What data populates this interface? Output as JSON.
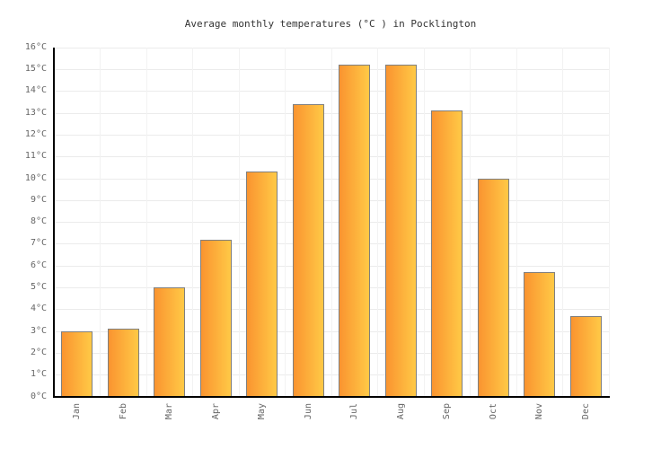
{
  "title": "Average monthly temperatures (°C ) in Pocklington",
  "chart_data": {
    "type": "bar",
    "title": "Average monthly temperatures (°C ) in Pocklington",
    "categories": [
      "Jan",
      "Feb",
      "Mar",
      "Apr",
      "May",
      "Jun",
      "Jul",
      "Aug",
      "Sep",
      "Oct",
      "Nov",
      "Dec"
    ],
    "values": [
      3.0,
      3.1,
      5.0,
      7.2,
      10.3,
      13.4,
      15.2,
      15.2,
      13.1,
      10.0,
      5.7,
      3.7
    ],
    "unit": "°C",
    "xlabel": "",
    "ylabel": "",
    "ylim": [
      0,
      16
    ],
    "y_tick_step": 1,
    "y_tick_labels": [
      "0°C",
      "1°C",
      "2°C",
      "3°C",
      "4°C",
      "5°C",
      "6°C",
      "7°C",
      "8°C",
      "9°C",
      "10°C",
      "11°C",
      "12°C",
      "13°C",
      "14°C",
      "15°C",
      "16°C"
    ],
    "grid": true,
    "legend": "none",
    "colors": {
      "bar_gradient_left": "#fa9430",
      "bar_gradient_right": "#ffc946",
      "bar_border": "#7f7f7f",
      "axis": "#000000",
      "h_grid": "#ebebeb",
      "v_grid": "#f2f2f2",
      "title_text": "#333333",
      "tick_text": "#666666",
      "background": "#ffffff"
    }
  }
}
